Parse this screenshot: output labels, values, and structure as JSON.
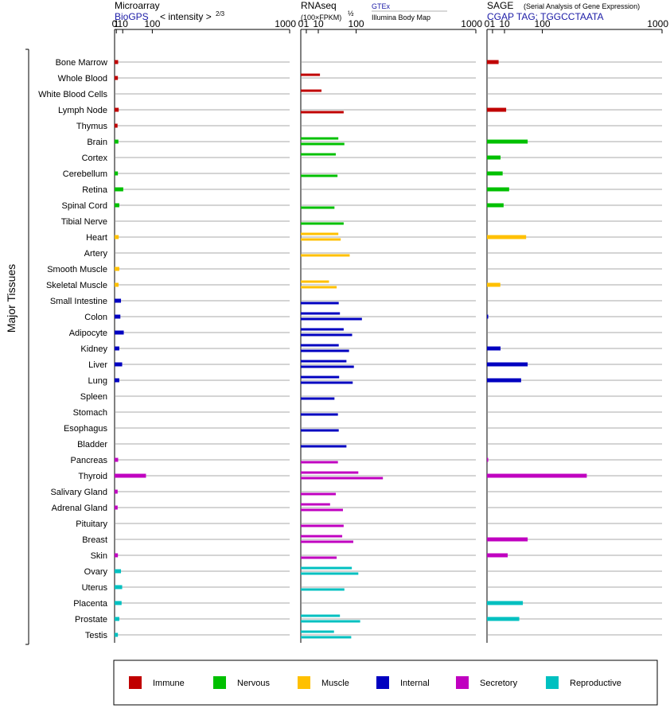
{
  "chart_data": {
    "type": "bar",
    "ylabel": "Major Tissues",
    "tissues": [
      "Bone Marrow",
      "Whole Blood",
      "White Blood Cells",
      "Lymph Node",
      "Thymus",
      "Brain",
      "Cortex",
      "Cerebellum",
      "Retina",
      "Spinal Cord",
      "Tibial Nerve",
      "Heart",
      "Artery",
      "Smooth Muscle",
      "Skeletal Muscle",
      "Small Intestine",
      "Colon",
      "Adipocyte",
      "Kidney",
      "Liver",
      "Lung",
      "Spleen",
      "Stomach",
      "Esophagus",
      "Bladder",
      "Pancreas",
      "Thyroid",
      "Salivary Gland",
      "Adrenal Gland",
      "Pituitary",
      "Breast",
      "Skin",
      "Ovary",
      "Uterus",
      "Placenta",
      "Prostate",
      "Testis"
    ],
    "groups": [
      "Immune",
      "Immune",
      "Immune",
      "Immune",
      "Immune",
      "Nervous",
      "Nervous",
      "Nervous",
      "Nervous",
      "Nervous",
      "Nervous",
      "Muscle",
      "Muscle",
      "Muscle",
      "Muscle",
      "Internal",
      "Internal",
      "Internal",
      "Internal",
      "Internal",
      "Internal",
      "Internal",
      "Internal",
      "Internal",
      "Internal",
      "Secretory",
      "Secretory",
      "Secretory",
      "Secretory",
      "Secretory",
      "Secretory",
      "Secretory",
      "Reproductive",
      "Reproductive",
      "Reproductive",
      "Reproductive",
      "Reproductive"
    ],
    "colors": {
      "Immune": "#c00000",
      "Nervous": "#00c000",
      "Muscle": "#ffc000",
      "Internal": "#0000c0",
      "Secretory": "#c000c0",
      "Reproductive": "#00c0c0"
    },
    "ticks": [
      {
        "label": "0",
        "value": 0
      },
      {
        "label": "1",
        "value": 1
      },
      {
        "label": "10",
        "value": 10
      },
      {
        "label": "100",
        "value": 100
      },
      {
        "label": "1000",
        "value": 1000
      }
    ],
    "panels": [
      {
        "title": "Microarray",
        "subtitle": "BioGPS",
        "axis_label": "< intensity >",
        "axis_exponent": "2/3",
        "scale": "power",
        "exponent": 0.6667,
        "xlim": [
          0,
          1000
        ],
        "values": [
          [
            2.9
          ],
          [
            2.6
          ],
          [
            null
          ],
          [
            3.6
          ],
          [
            2.2
          ],
          [
            3.2
          ],
          [
            null
          ],
          [
            2.6
          ],
          [
            11
          ],
          [
            4.4
          ],
          [
            null
          ],
          [
            3.6
          ],
          [
            null
          ],
          [
            4.4
          ],
          [
            3.4
          ],
          [
            7
          ],
          [
            6
          ],
          [
            12
          ],
          [
            4.4
          ],
          [
            9
          ],
          [
            4.4
          ],
          [
            null
          ],
          [
            null
          ],
          [
            null
          ],
          [
            null
          ],
          [
            2.9
          ],
          [
            76
          ],
          [
            2.3
          ],
          [
            2.3
          ],
          [
            null
          ],
          [
            null
          ],
          [
            2.6
          ],
          [
            7
          ],
          [
            9
          ],
          [
            8
          ],
          [
            4.4
          ],
          [
            2.6
          ]
        ]
      },
      {
        "title": "RNAseq",
        "axis_label": "(100×FPKM)",
        "axis_exponent": "½",
        "legend_gtex": "GTEx",
        "legend_illumina": "Illumina Body Map",
        "scale": "power",
        "exponent": 0.5,
        "xlim": [
          0,
          1000
        ],
        "values": [
          [
            null,
            null
          ],
          [
            12,
            null
          ],
          [
            14,
            null
          ],
          [
            null,
            60
          ],
          [
            null,
            null
          ],
          [
            46,
            62
          ],
          [
            40,
            null
          ],
          [
            null,
            44
          ],
          [
            null,
            null
          ],
          [
            null,
            37
          ],
          [
            null,
            60
          ],
          [
            46,
            52
          ],
          [
            null,
            78
          ],
          [
            null,
            null
          ],
          [
            26,
            42
          ],
          [
            null,
            47
          ],
          [
            50,
            122
          ],
          [
            60,
            86
          ],
          [
            47,
            76
          ],
          [
            68,
            92
          ],
          [
            48,
            88
          ],
          [
            null,
            37
          ],
          [
            null,
            45
          ],
          [
            null,
            47
          ],
          [
            null,
            68
          ],
          [
            null,
            45
          ],
          [
            108,
            220
          ],
          [
            null,
            40
          ],
          [
            28,
            58
          ],
          [
            null,
            60
          ],
          [
            56,
            90
          ],
          [
            null,
            42
          ],
          [
            85,
            108
          ],
          [
            null,
            62
          ],
          [
            null,
            null
          ],
          [
            50,
            115
          ],
          [
            36,
            83
          ]
        ]
      },
      {
        "title": "SAGE",
        "subtitle_note": "(Serial Analysis of Gene Expression)",
        "subtitle": "CGAP TAG: TGGCCTAATA",
        "scale": "power",
        "exponent": 0.5,
        "xlim": [
          0,
          1000
        ],
        "values": [
          [
            4.4
          ],
          [
            null
          ],
          [
            null
          ],
          [
            12
          ],
          [
            null
          ],
          [
            54
          ],
          [
            6
          ],
          [
            8
          ],
          [
            16
          ],
          [
            9
          ],
          [
            null
          ],
          [
            50
          ],
          [
            null
          ],
          [
            null
          ],
          [
            5.8
          ],
          [
            null
          ],
          [
            0.05
          ],
          [
            null
          ],
          [
            6
          ],
          [
            54
          ],
          [
            38
          ],
          [
            null
          ],
          [
            null
          ],
          [
            null
          ],
          [
            null
          ],
          [
            0.05
          ],
          [
            325
          ],
          [
            null
          ],
          [
            null
          ],
          [
            null
          ],
          [
            54
          ],
          [
            14
          ],
          [
            null
          ],
          [
            null
          ],
          [
            42
          ],
          [
            34
          ],
          [
            null
          ]
        ]
      }
    ],
    "legend": [
      "Immune",
      "Nervous",
      "Muscle",
      "Internal",
      "Secretory",
      "Reproductive"
    ]
  }
}
